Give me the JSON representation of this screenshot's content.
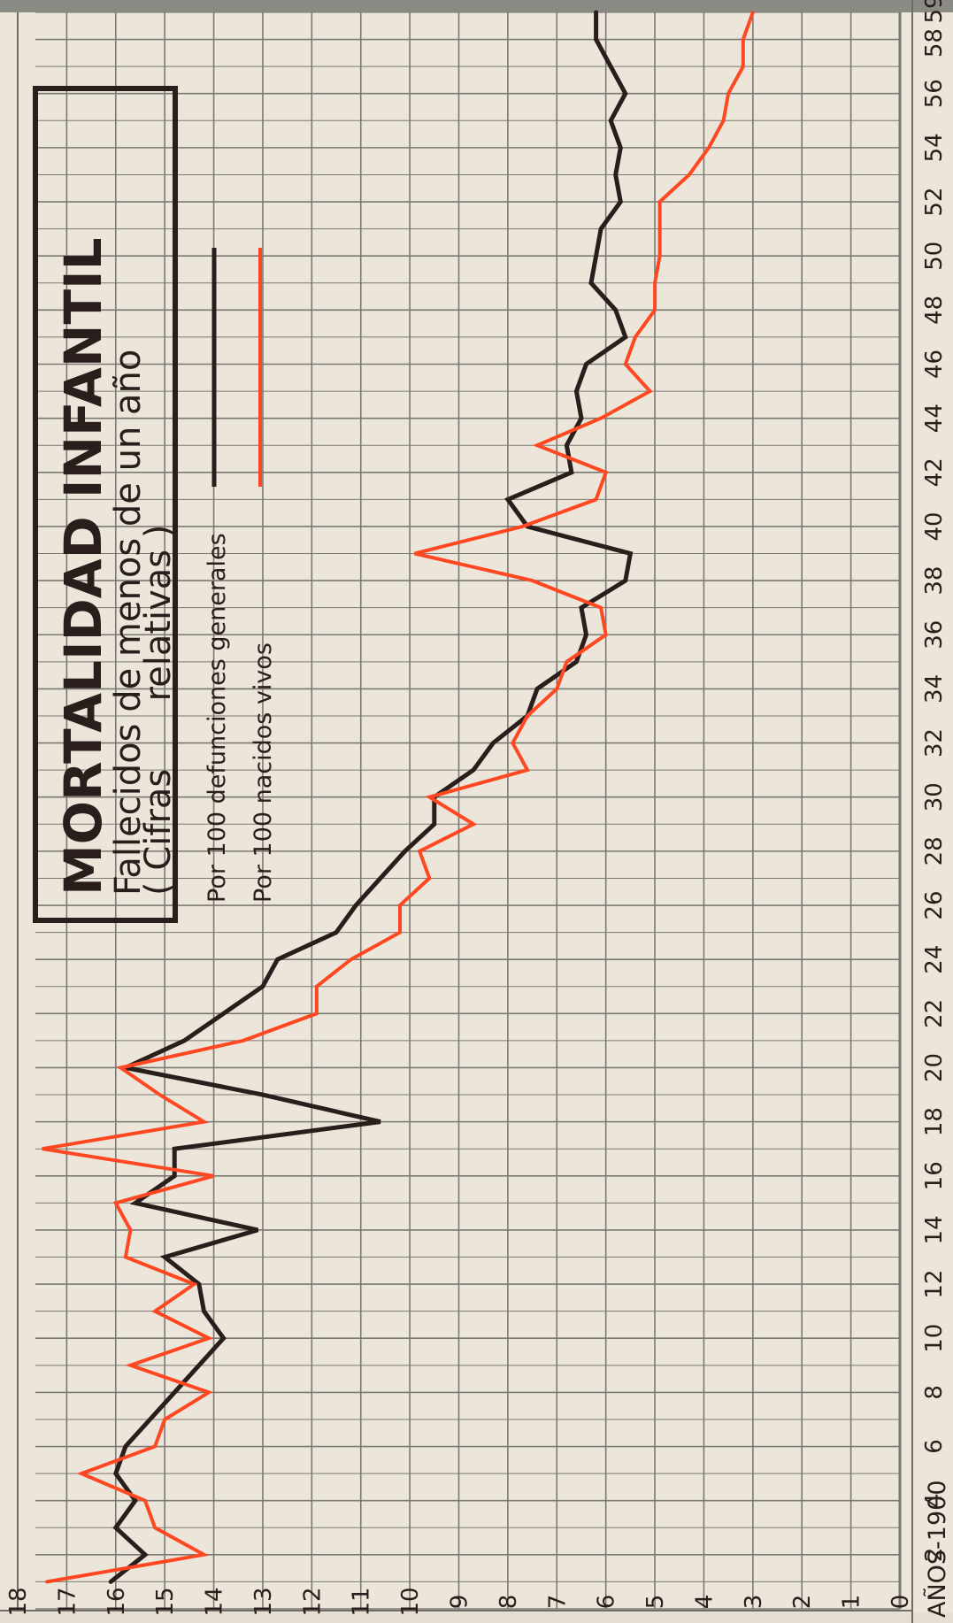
{
  "chart_data": {
    "type": "line",
    "title": "MORTALIDAD INFANTIL",
    "subtitle_line1": "Fallecidos de menos de un año",
    "subtitle_line2": "( Cifras      relativas )",
    "xlabel": "AÑOS-1900",
    "ylabel": "",
    "x_ticks": [
      "2",
      "4",
      "6",
      "8",
      "10",
      "12",
      "14",
      "16",
      "18",
      "20",
      "22",
      "24",
      "26",
      "28",
      "30",
      "32",
      "34",
      "36",
      "38",
      "40",
      "42",
      "44",
      "46",
      "48",
      "50",
      "52",
      "54",
      "56",
      "58",
      "59"
    ],
    "y_ticks": [
      "0",
      "1",
      "2",
      "3",
      "4",
      "5",
      "6",
      "7",
      "8",
      "9",
      "10",
      "11",
      "12",
      "13",
      "14",
      "15",
      "16",
      "17",
      "18"
    ],
    "xlim": [
      1900,
      1959
    ],
    "ylim": [
      0,
      18
    ],
    "legend_position": "top-right",
    "grid": true,
    "x": [
      1901,
      1902,
      1903,
      1904,
      1905,
      1906,
      1907,
      1908,
      1909,
      1910,
      1911,
      1912,
      1913,
      1914,
      1915,
      1916,
      1917,
      1918,
      1919,
      1920,
      1921,
      1922,
      1923,
      1924,
      1925,
      1926,
      1927,
      1928,
      1929,
      1930,
      1931,
      1932,
      1933,
      1934,
      1935,
      1936,
      1937,
      1938,
      1939,
      1940,
      1941,
      1942,
      1943,
      1944,
      1945,
      1946,
      1947,
      1948,
      1949,
      1950,
      1951,
      1952,
      1953,
      1954,
      1955,
      1956,
      1957,
      1958,
      1959
    ],
    "series": [
      {
        "name": "Por 100 defunciones generales",
        "color": "#2a1e1c",
        "values": [
          16.1,
          15.4,
          16.0,
          15.6,
          16.0,
          15.8,
          15.3,
          14.8,
          14.3,
          13.8,
          14.2,
          14.3,
          15.0,
          13.1,
          15.6,
          14.8,
          14.8,
          10.6,
          13.0,
          15.8,
          14.6,
          13.8,
          13.0,
          12.7,
          11.5,
          11.1,
          10.6,
          10.1,
          9.5,
          9.5,
          8.7,
          8.3,
          7.6,
          7.4,
          6.6,
          6.4,
          6.5,
          5.6,
          5.5,
          7.6,
          8.0,
          6.7,
          6.8,
          6.5,
          6.6,
          6.4,
          5.6,
          5.8,
          6.3,
          6.2,
          6.1,
          5.7,
          5.8,
          5.7,
          5.9,
          5.6,
          5.9,
          6.2,
          6.2
        ],
        "label": "Por 100 defunciones generales"
      },
      {
        "name": "Por 100 nacidos vivos",
        "color": "#ff4822",
        "values": [
          17.4,
          14.2,
          15.2,
          15.4,
          16.7,
          15.2,
          15.0,
          14.1,
          15.7,
          14.1,
          15.2,
          14.4,
          15.8,
          15.7,
          16.0,
          14.0,
          17.5,
          14.2,
          15.1,
          15.9,
          13.4,
          11.9,
          11.9,
          11.2,
          10.2,
          10.2,
          9.6,
          9.8,
          8.7,
          9.6,
          7.6,
          7.9,
          7.6,
          7.0,
          6.8,
          6.0,
          6.1,
          7.5,
          9.9,
          7.7,
          6.2,
          6.0,
          7.4,
          6.1,
          5.1,
          5.6,
          5.4,
          5.0,
          5.0,
          4.9,
          4.9,
          4.9,
          4.3,
          3.9,
          3.6,
          3.5,
          3.2,
          3.2,
          3.0
        ],
        "label": "Por 100 nacidos vivos"
      }
    ]
  }
}
